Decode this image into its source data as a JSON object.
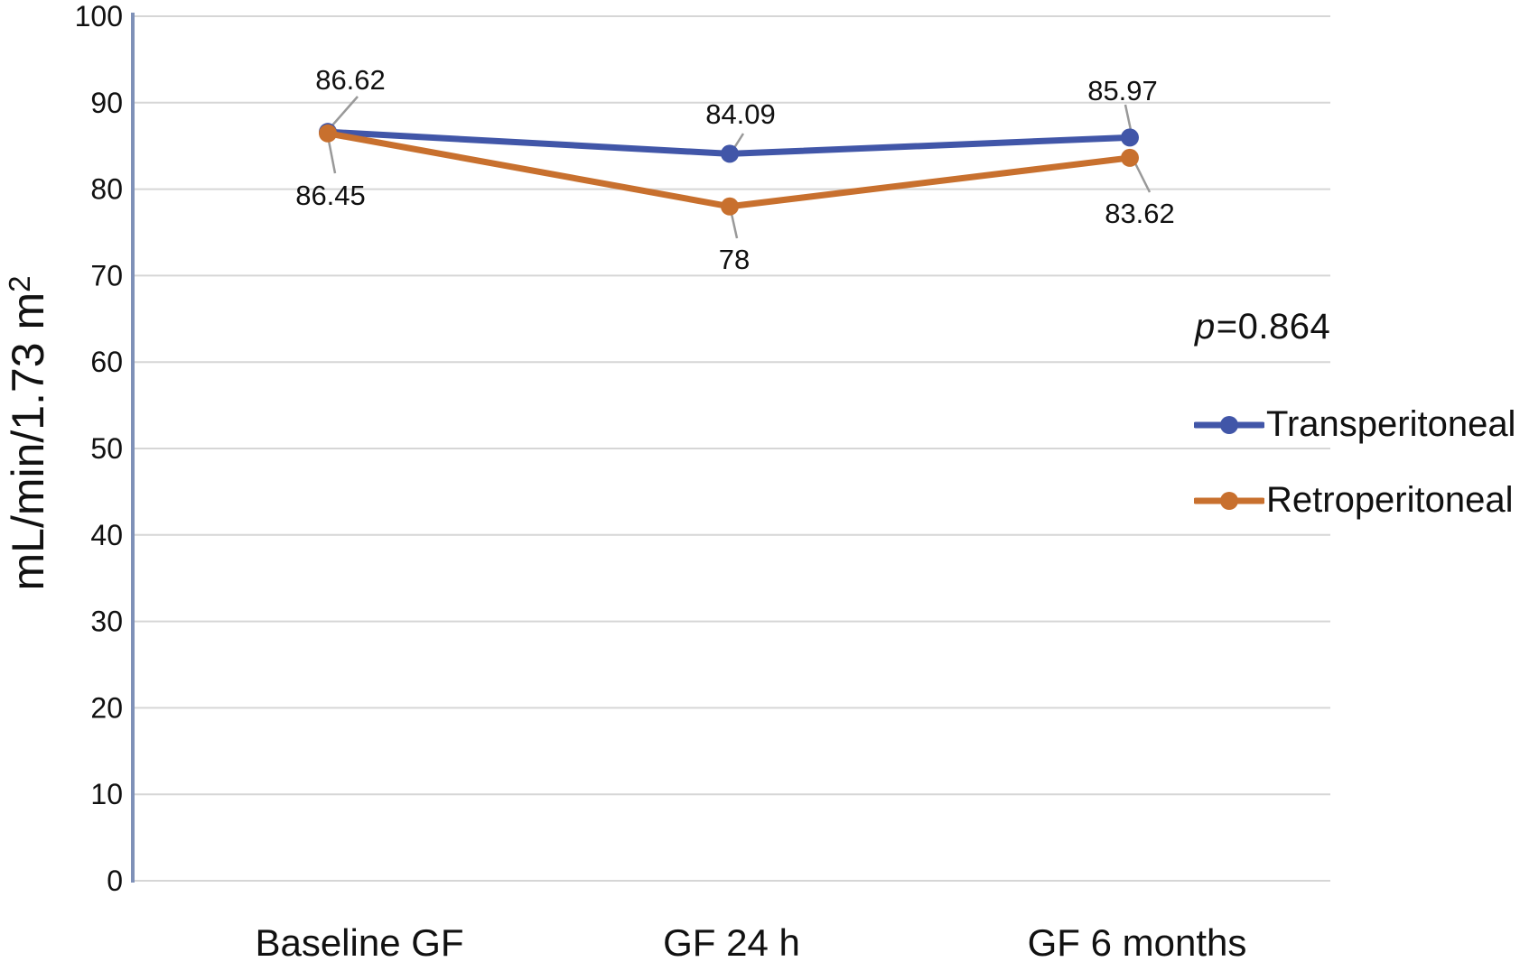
{
  "chart_data": {
    "type": "line",
    "title": "",
    "xlabel": "",
    "ylabel": "mL/min/1.73 m²",
    "ylabel_parts": {
      "text": "mL/min/1.73 m",
      "sup": "2"
    },
    "categories": [
      "Baseline GF",
      "GF 24 h",
      "GF 6 months"
    ],
    "series": [
      {
        "name": "Transperitoneal",
        "color": "#4156a8",
        "values": [
          86.62,
          84.09,
          85.97
        ]
      },
      {
        "name": "Retroperitoneal",
        "color": "#c8702e",
        "values": [
          86.45,
          78,
          83.62
        ]
      }
    ],
    "ylim": [
      0,
      100
    ],
    "yticks": [
      100,
      90,
      80,
      70,
      60,
      50,
      40,
      30,
      20,
      10,
      0
    ],
    "grid": true,
    "legend_position": "right",
    "annotation": {
      "prefix": "p",
      "rest": "=0.864",
      "full": "p=0.864"
    }
  },
  "colors": {
    "grid": "#d6d6d6",
    "axis": "#7f91b8",
    "leader": "#999999",
    "text": "#111111"
  }
}
